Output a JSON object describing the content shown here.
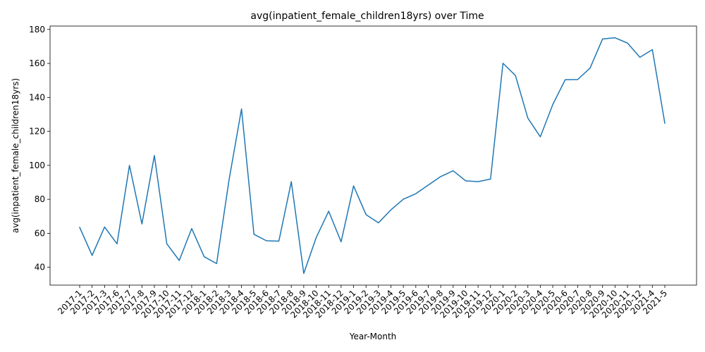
{
  "chart_data": {
    "type": "line",
    "title": "avg(inpatient_female_children18yrs) over Time",
    "xlabel": "Year-Month",
    "ylabel": "avg(inpatient_female_children18yrs)",
    "ylim": [
      29.5,
      182
    ],
    "yticks": [
      40,
      60,
      80,
      100,
      120,
      140,
      160,
      180
    ],
    "grid": false,
    "line_color": "#1f77b4",
    "categories": [
      "2017-1",
      "2017-2",
      "2017-3",
      "2017-6",
      "2017-7",
      "2017-8",
      "2017-9",
      "2017-10",
      "2017-11",
      "2017-12",
      "2018-1",
      "2018-2",
      "2018-3",
      "2018-4",
      "2018-5",
      "2018-6",
      "2018-7",
      "2018-8",
      "2018-9",
      "2018-10",
      "2018-11",
      "2018-12",
      "2019-1",
      "2019-2",
      "2019-3",
      "2019-4",
      "2019-5",
      "2019-6",
      "2019-7",
      "2019-8",
      "2019-9",
      "2019-10",
      "2019-11",
      "2019-12",
      "2020-1",
      "2020-2",
      "2020-3",
      "2020-4",
      "2020-5",
      "2020-6",
      "2020-7",
      "2020-8",
      "2020-9",
      "2020-10",
      "2020-11",
      "2020-12",
      "2021-4",
      "2021-5"
    ],
    "values": [
      63.5,
      47,
      63.7,
      53.8,
      100,
      65.5,
      105.8,
      53.8,
      44,
      62.8,
      46.2,
      42.2,
      91.5,
      133.2,
      59.4,
      55.6,
      55.4,
      90.4,
      36.4,
      57.5,
      73,
      55,
      87.9,
      71,
      66.2,
      73.8,
      80.1,
      83.3,
      88.4,
      93.4,
      96.8,
      90.9,
      90.4,
      91.9,
      160.1,
      152.9,
      127.8,
      116.8,
      135.8,
      150.4,
      150.5,
      157.3,
      174.4,
      175.1,
      172,
      163.6,
      168.1,
      124.8
    ]
  }
}
